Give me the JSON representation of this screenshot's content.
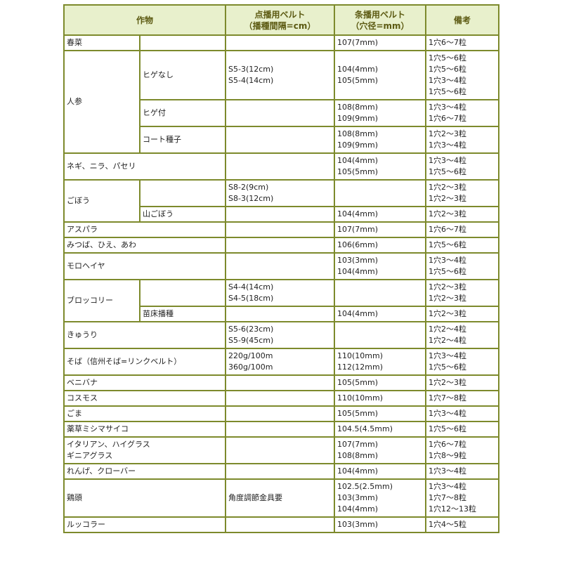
{
  "header": {
    "crop": "作物",
    "dot_belt": [
      "点播用ベルト",
      "（播種間隔=cm）"
    ],
    "strip_belt": [
      "条播用ベルト",
      "（穴径=mm）"
    ],
    "notes": "備考"
  },
  "crops": [
    {
      "name": [
        "春菜"
      ],
      "subs": [
        {
          "variety": "",
          "dot": [],
          "strip": [
            "107(7mm)"
          ],
          "notes": [
            "1穴6～7粒"
          ]
        }
      ]
    },
    {
      "name": [
        "人参"
      ],
      "subs": [
        {
          "variety": "ヒゲなし",
          "dot": [
            "S5-3(12cm)",
            "S5-4(14cm)"
          ],
          "strip": [
            "104(4mm)",
            "105(5mm)"
          ],
          "notes": [
            "1穴5～6粒",
            "1穴5～6粒",
            "1穴3～4粒",
            "1穴5～6粒"
          ]
        },
        {
          "variety": "ヒゲ付",
          "dot": [],
          "strip": [
            "108(8mm)",
            "109(9mm)"
          ],
          "notes": [
            "1穴3～4粒",
            "1穴6～7粒"
          ]
        },
        {
          "variety": "コート種子",
          "dot": [],
          "strip": [
            "108(8mm)",
            "109(9mm)"
          ],
          "notes": [
            "1穴2～3粒",
            "1穴3～4粒"
          ]
        }
      ]
    },
    {
      "name": [
        "ネギ、ニラ、パセリ"
      ],
      "subs": [
        {
          "variety": null,
          "dot": [],
          "strip": [
            "104(4mm)",
            "105(5mm)"
          ],
          "notes": [
            "1穴3～4粒",
            "1穴5～6粒"
          ]
        }
      ]
    },
    {
      "name": [
        "ごぼう"
      ],
      "subs": [
        {
          "variety": "",
          "dot": [
            "S8-2(9cm)",
            "S8-3(12cm)"
          ],
          "strip": [],
          "notes": [
            "1穴2～3粒",
            "1穴2～3粒"
          ]
        },
        {
          "variety": "山ごぼう",
          "dot": [],
          "strip": [
            "104(4mm)"
          ],
          "notes": [
            "1穴2～3粒"
          ]
        }
      ]
    },
    {
      "name": [
        "アスパラ"
      ],
      "subs": [
        {
          "variety": null,
          "dot": [],
          "strip": [
            "107(7mm)"
          ],
          "notes": [
            "1穴6～7粒"
          ]
        }
      ]
    },
    {
      "name": [
        "みつば、ひえ、あわ"
      ],
      "subs": [
        {
          "variety": null,
          "dot": [],
          "strip": [
            "106(6mm)"
          ],
          "notes": [
            "1穴5～6粒"
          ]
        }
      ]
    },
    {
      "name": [
        "モロヘイヤ"
      ],
      "subs": [
        {
          "variety": null,
          "dot": [],
          "strip": [
            "103(3mm)",
            "104(4mm)"
          ],
          "notes": [
            "1穴3～4粒",
            "1穴5～6粒"
          ]
        }
      ]
    },
    {
      "name": [
        "ブロッコリー"
      ],
      "subs": [
        {
          "variety": "",
          "dot": [
            "S4-4(14cm)",
            "S4-5(18cm)"
          ],
          "strip": [],
          "notes": [
            "1穴2～3粒",
            "1穴2～3粒"
          ]
        },
        {
          "variety": "苗床播種",
          "dot": [],
          "strip": [
            "104(4mm)"
          ],
          "notes": [
            "1穴2～3粒"
          ]
        }
      ]
    },
    {
      "name": [
        "きゅうり"
      ],
      "subs": [
        {
          "variety": null,
          "dot": [
            "S5-6(23cm)",
            "S5-9(45cm)"
          ],
          "strip": [],
          "notes": [
            "1穴2～4粒",
            "1穴2～4粒"
          ]
        }
      ]
    },
    {
      "name": [
        "そば（信州そば=リンクベルト）"
      ],
      "subs": [
        {
          "variety": null,
          "dot": [
            "220g/100m",
            "360g/100m"
          ],
          "strip": [
            "110(10mm)",
            "112(12mm)"
          ],
          "notes": [
            "1穴3～4粒",
            "1穴5～6粒"
          ]
        }
      ]
    },
    {
      "name": [
        "ベニバナ"
      ],
      "subs": [
        {
          "variety": null,
          "dot": [],
          "strip": [
            "105(5mm)"
          ],
          "notes": [
            "1穴2～3粒"
          ]
        }
      ]
    },
    {
      "name": [
        "コスモス"
      ],
      "subs": [
        {
          "variety": null,
          "dot": [],
          "strip": [
            "110(10mm)"
          ],
          "notes": [
            "1穴7～8粒"
          ]
        }
      ]
    },
    {
      "name": [
        "ごま"
      ],
      "subs": [
        {
          "variety": null,
          "dot": [],
          "strip": [
            "105(5mm)"
          ],
          "notes": [
            "1穴3～4粒"
          ]
        }
      ]
    },
    {
      "name": [
        "薬草ミシマサイコ"
      ],
      "subs": [
        {
          "variety": null,
          "dot": [],
          "strip": [
            "104.5(4.5mm)"
          ],
          "notes": [
            "1穴5～6粒"
          ]
        }
      ]
    },
    {
      "name": [
        "イタリアン、ハイグラス",
        "ギニアグラス"
      ],
      "subs": [
        {
          "variety": null,
          "dot": [],
          "strip": [
            "107(7mm)",
            "108(8mm)"
          ],
          "notes": [
            "1穴6～7粒",
            "1穴8～9粒"
          ]
        }
      ]
    },
    {
      "name": [
        "れんげ、クローバー"
      ],
      "subs": [
        {
          "variety": null,
          "dot": [],
          "strip": [
            "104(4mm)"
          ],
          "notes": [
            "1穴3～4粒"
          ]
        }
      ]
    },
    {
      "name": [
        "鶏頭"
      ],
      "subs": [
        {
          "variety": null,
          "dot": [
            "角度調節金具要"
          ],
          "strip": [
            "102.5(2.5mm)",
            "103(3mm)",
            "104(4mm)"
          ],
          "notes": [
            "1穴3～4粒",
            "1穴7～8粒",
            "1穴12～13粒"
          ]
        }
      ]
    },
    {
      "name": [
        "ルッコラー"
      ],
      "subs": [
        {
          "variety": null,
          "dot": [],
          "strip": [
            "103(3mm)"
          ],
          "notes": [
            "1穴4～5粒"
          ]
        }
      ]
    }
  ]
}
